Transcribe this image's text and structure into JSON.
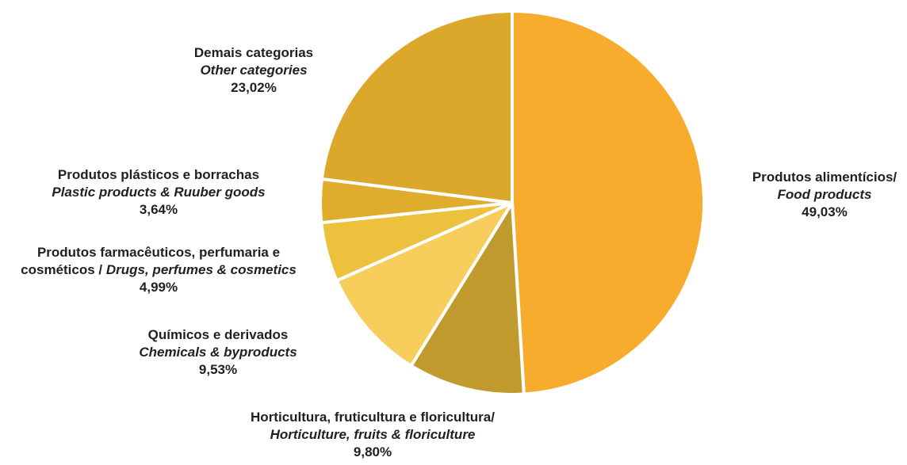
{
  "chart_data": {
    "type": "pie",
    "slices": [
      {
        "pt": "Produtos alimentícios/",
        "en": "Food products",
        "value": 49.03,
        "value_label": "49,03%",
        "color": "#F7AC2E"
      },
      {
        "pt": "Horticultura, fruticultura e floricultura/",
        "en": "Horticulture, fruits & floriculture",
        "value": 9.8,
        "value_label": "9,80%",
        "color": "#C09A2D"
      },
      {
        "pt": "Químicos e derivados",
        "en": "Chemicals & byproducts",
        "value": 9.53,
        "value_label": "9,53%",
        "color": "#F7CE5C"
      },
      {
        "pt": "Produtos farmacêuticos, perfumaria e",
        "pt2": "cosméticos / ",
        "en": "Drugs, perfumes & cosmetics",
        "value": 4.99,
        "value_label": "4,99%",
        "color": "#EBC13D"
      },
      {
        "pt": "Produtos plásticos e borrachas",
        "en": "Plastic products & Ruuber goods",
        "value": 3.64,
        "value_label": "3,64%",
        "color": "#E0AC2B"
      },
      {
        "pt": "Demais categorias",
        "en": "Other categories",
        "value": 23.02,
        "value_label": "23,02%",
        "color": "#DBA82C"
      }
    ]
  }
}
